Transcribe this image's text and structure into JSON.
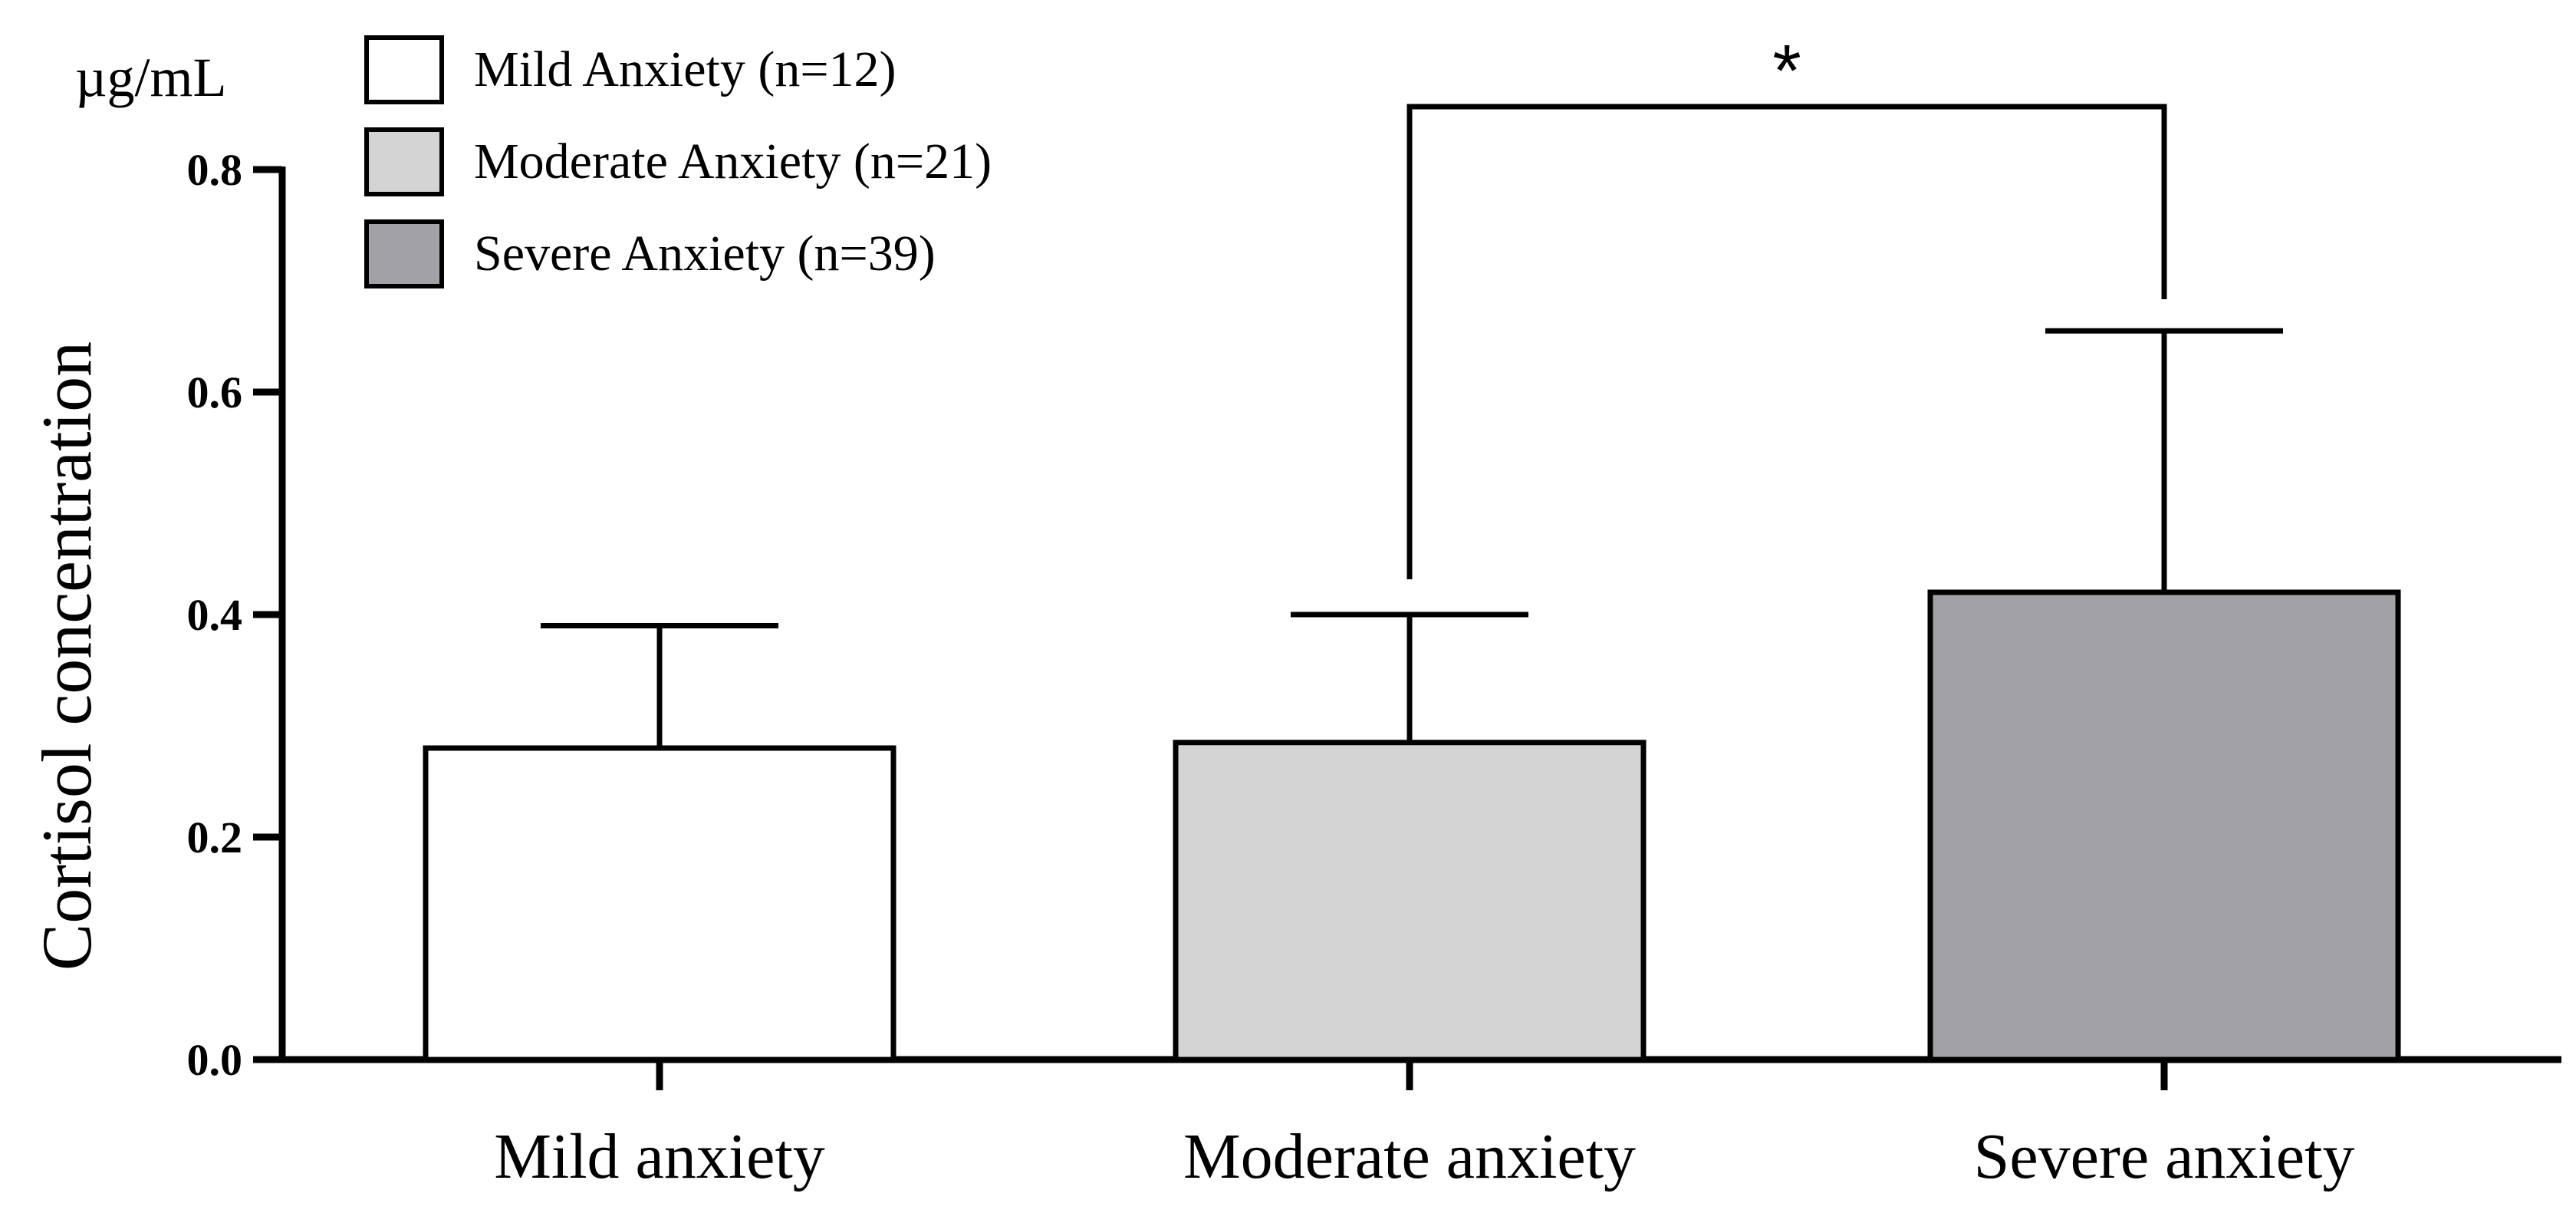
{
  "chart_data": {
    "type": "bar",
    "title": "",
    "ylabel": "Cortisol concentration",
    "yunit": "µg/mL",
    "ylim": [
      0,
      0.8
    ],
    "yticks": [
      "0.0",
      "0.2",
      "0.4",
      "0.6",
      "0.8"
    ],
    "categories": [
      "Mild anxiety",
      "Moderate anxiety",
      "Severe anxiety"
    ],
    "values": [
      0.28,
      0.285,
      0.42
    ],
    "error_upper": [
      0.39,
      0.4,
      0.655
    ],
    "colors": [
      "#ffffff",
      "#d4d4d4",
      "#a2a1a6"
    ],
    "legend": {
      "placement": "top-left",
      "entries": [
        "Mild Anxiety (n=12)",
        "Moderate Anxiety (n=21)",
        "Severe Anxiety (n=39)"
      ]
    },
    "significance": {
      "from": 1,
      "to": 2,
      "label": "*"
    },
    "grid": false
  }
}
